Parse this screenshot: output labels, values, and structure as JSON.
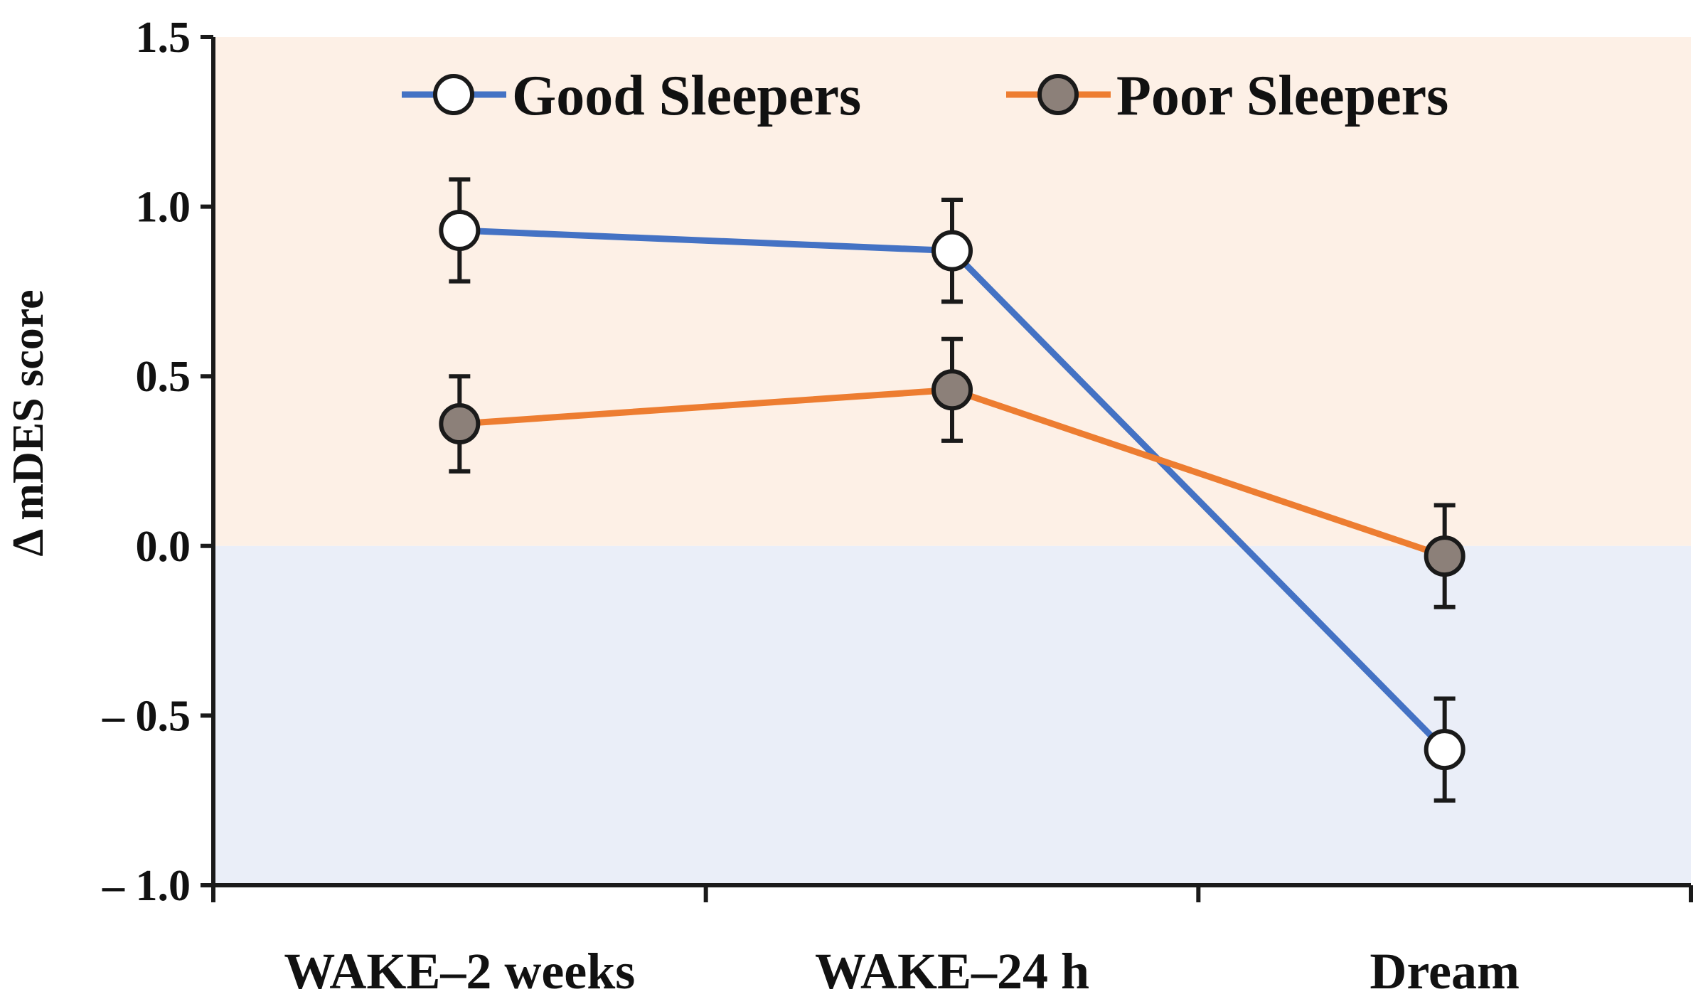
{
  "chart_data": {
    "type": "line",
    "title": "",
    "xlabel": "",
    "ylabel": "Δ mDES score",
    "ylim": [
      -1.0,
      1.5
    ],
    "yticks": [
      1.5,
      1.0,
      0.5,
      0.0,
      -0.5,
      -1.0
    ],
    "ytick_labels": [
      "1.5",
      "1.0",
      "0.5",
      "0.0",
      "– 0.5",
      "– 1.0"
    ],
    "categories": [
      "WAKE–2 weeks",
      "WAKE–24 h",
      "Dream"
    ],
    "series": [
      {
        "name": "Good Sleepers",
        "values": [
          0.93,
          0.87,
          -0.6
        ],
        "errors": [
          0.15,
          0.15,
          0.15
        ],
        "line_color": "#4472c4",
        "marker_fill": "#ffffff"
      },
      {
        "name": "Poor Sleepers",
        "values": [
          0.36,
          0.46,
          -0.03
        ],
        "errors": [
          0.14,
          0.15,
          0.15
        ],
        "line_color": "#ed7d31",
        "marker_fill": "#8c8079"
      }
    ],
    "background_regions": [
      {
        "name": "positive",
        "from": 0.0,
        "to": 1.5,
        "color": "#fdf0e6"
      },
      {
        "name": "negative",
        "from": -1.0,
        "to": 0.0,
        "color": "#eaeef8"
      }
    ],
    "legend": "top"
  }
}
